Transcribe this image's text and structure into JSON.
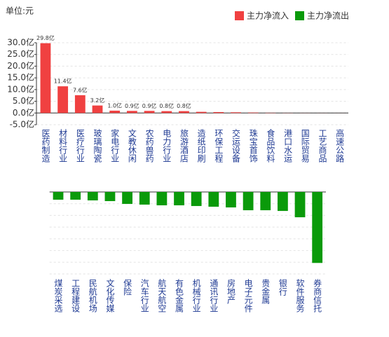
{
  "unit_label": "单位:元",
  "chart_data": [
    {
      "type": "bar",
      "categories": [
        "医药制造",
        "材料行业",
        "医疗行业",
        "玻璃陶瓷",
        "家电行业",
        "文教休闲",
        "农药兽药",
        "电力行业",
        "旅游酒店",
        "造纸印刷",
        "环保工程",
        "交运设备",
        "珠宝首饰",
        "食品饮料",
        "港口水运",
        "国际贸易",
        "工艺商品",
        "高速公路"
      ],
      "series": [
        {
          "name": "主力净流入",
          "color": "#f04141",
          "values": [
            29.8,
            11.4,
            7.6,
            3.2,
            1.0,
            0.9,
            0.9,
            0.8,
            0.8,
            0.5,
            0.4,
            0.3,
            0.2,
            0.1,
            0.05,
            0.03,
            0.02,
            0.01
          ],
          "value_labels": [
            "29.8亿",
            "11.4亿",
            "7.6亿",
            "3.2亿",
            "1.0亿",
            "0.9亿",
            "0.9亿",
            "0.8亿",
            "0.8亿",
            null,
            null,
            null,
            null,
            null,
            null,
            null,
            null,
            null
          ]
        }
      ],
      "ylim": [
        -5,
        30
      ],
      "yticks": [
        {
          "value": -5,
          "label": "-5.0亿"
        },
        {
          "value": 0,
          "label": "0.0亿"
        },
        {
          "value": 5,
          "label": "5.0亿"
        },
        {
          "value": 10,
          "label": "10.0亿"
        },
        {
          "value": 15,
          "label": "15.0亿"
        },
        {
          "value": 20,
          "label": "20.0亿"
        },
        {
          "value": 25,
          "label": "25.0亿"
        },
        {
          "value": 30,
          "label": "30.0亿"
        }
      ],
      "grid": true
    },
    {
      "type": "bar",
      "categories": [
        "煤炭采选",
        "工程建设",
        "民航机场",
        "文化传媒",
        "保险",
        "汽车行业",
        "航天航空",
        "有色金属",
        "机械行业",
        "通讯行业",
        "房地产",
        "电子元件",
        "贵金属",
        "银行",
        "软件服务",
        "券商信托"
      ],
      "series": [
        {
          "name": "主力净流出",
          "color": "#0a9a0a",
          "values": [
            -3.3,
            -3.3,
            -3.6,
            -3.9,
            -5.1,
            -5.4,
            -5.7,
            -5.7,
            -6.0,
            -6.3,
            -6.6,
            -7.8,
            -7.8,
            -8.1,
            -10.8,
            -30.3
          ]
        }
      ],
      "ylim": [
        -35,
        0
      ],
      "yticks": [
        -35,
        -30,
        -25,
        -20,
        -15,
        -10,
        -5,
        0
      ],
      "tick_labels": false,
      "grid": true
    }
  ]
}
